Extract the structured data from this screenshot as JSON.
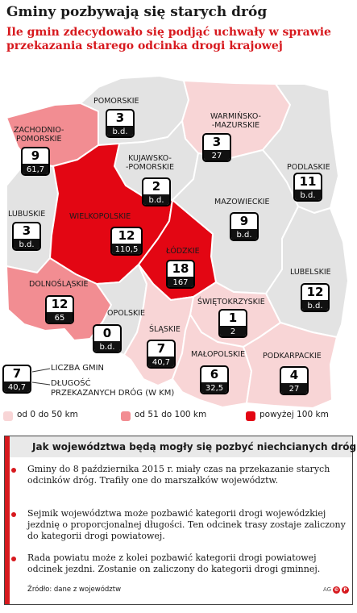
{
  "header": {
    "title": "Gminy pozbywają się starych dróg",
    "subtitle": "Ile gmin zdecydowało się podjąć uchwały w sprawie przekazania starego odcinka drogi krajowej"
  },
  "colors": {
    "low": "#f8d5d6",
    "mid": "#f28d92",
    "high": "#e30613",
    "none": "#e3e3e3",
    "accent": "#d7191e"
  },
  "regions": [
    {
      "id": "pomorskie",
      "name": "POMORSKIE",
      "municipalities": "3",
      "km": "b.d.",
      "category": "none"
    },
    {
      "id": "zachodniopomorskie",
      "name": "ZACHODNIO-\nPOMORSKIE",
      "municipalities": "9",
      "km": "61,7",
      "category": "mid"
    },
    {
      "id": "warminsko-mazurskie",
      "name": "WARMIŃSKO-\n-MAZURSKIE",
      "municipalities": "3",
      "km": "27",
      "category": "low"
    },
    {
      "id": "kujawsko-pomorskie",
      "name": "KUJAWSKO-\n-POMORSKIE",
      "municipalities": "2",
      "km": "b.d.",
      "category": "none"
    },
    {
      "id": "podlaskie",
      "name": "PODLASKIE",
      "municipalities": "11",
      "km": "b.d.",
      "category": "none"
    },
    {
      "id": "lubuskie",
      "name": "LUBUSKIE",
      "municipalities": "3",
      "km": "b.d.",
      "category": "none"
    },
    {
      "id": "wielkopolskie",
      "name": "WIELKOPOLSKIE",
      "municipalities": "12",
      "km": "110,5",
      "category": "high"
    },
    {
      "id": "mazowieckie",
      "name": "MAZOWIECKIE",
      "municipalities": "9",
      "km": "b.d.",
      "category": "none"
    },
    {
      "id": "lodzkie",
      "name": "ŁÓDZKIE",
      "municipalities": "18",
      "km": "167",
      "category": "high"
    },
    {
      "id": "lubelskie",
      "name": "LUBELSKIE",
      "municipalities": "12",
      "km": "b.d.",
      "category": "none"
    },
    {
      "id": "dolnoslaskie",
      "name": "DOLNOŚLĄSKIE",
      "municipalities": "12",
      "km": "65",
      "category": "mid"
    },
    {
      "id": "swietokrzyskie",
      "name": "ŚWIĘTOKRZYSKIE",
      "municipalities": "1",
      "km": "2",
      "category": "low"
    },
    {
      "id": "opolskie",
      "name": "OPOLSKIE",
      "municipalities": "0",
      "km": "b.d.",
      "category": "none"
    },
    {
      "id": "slaskie",
      "name": "ŚLĄSKIE",
      "municipalities": "7",
      "km": "40,7",
      "category": "low"
    },
    {
      "id": "malopolskie",
      "name": "MAŁOPOLSKIE",
      "municipalities": "6",
      "km": "32,5",
      "category": "low"
    },
    {
      "id": "podkarpackie",
      "name": "PODKARPACKIE",
      "municipalities": "4",
      "km": "27",
      "category": "low"
    }
  ],
  "legend": {
    "example_number": "7",
    "example_km": "40,7",
    "label_count": "LICZBA GMIN",
    "label_length": "DŁUGOŚĆ\nPRZEKAZANYCH DRÓG (W KM)",
    "scale_low": "od 0 do 50 km",
    "scale_mid": "od 51 do 100 km",
    "scale_high": "powyżej 100 km"
  },
  "info": {
    "title": "Jak województwa będą mogły się pozbyć niechcianych dróg",
    "paragraphs": [
      "Gminy do 8 października 2015 r. miały czas na przekazanie starych odcinków dróg. Trafiły one do marszałków województw.",
      "Sejmik województwa może pozbawić kategorii drogi wojewódzkiej jezdnię o proporcjonalnej długości. Ten odcinek trasy zostaje zaliczony do kategorii drogi powiatowej.",
      "Rada powiatu może z kolei pozbawić kategorii drogi powiatowej odcinek jezdni. Zostanie on zaliczony do kategorii drogi gminnej."
    ],
    "source": "Źródło: dane z województw",
    "credit": "AG"
  }
}
